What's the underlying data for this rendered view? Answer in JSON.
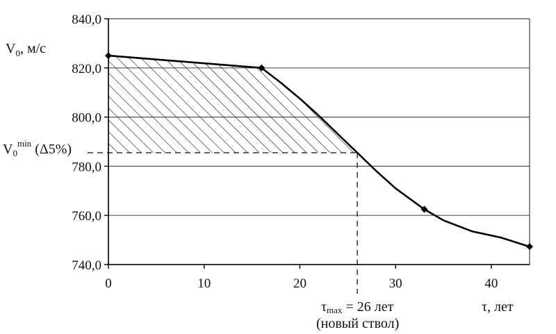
{
  "chart_data": {
    "type": "line",
    "ylabel": "V",
    "ylabel_sub": "0",
    "ylabel_unit": ", м/с",
    "xlabel": "τ, лет",
    "y_ticks": [
      "840,0",
      "820,0",
      "800,0",
      "780,0",
      "760,0",
      "740,0"
    ],
    "x_ticks": [
      "0",
      "10",
      "20",
      "30",
      "40"
    ],
    "xlim": [
      0,
      44
    ],
    "ylim": [
      740,
      840
    ],
    "grid": "horizontal",
    "series": [
      {
        "x": [
          0,
          16,
          18,
          20,
          22,
          24,
          26,
          28,
          30,
          33,
          35,
          38,
          41,
          44
        ],
        "y": [
          825,
          820,
          814,
          807.5,
          800.5,
          793,
          785.5,
          778,
          771,
          762.5,
          758,
          753.5,
          751,
          747.3
        ],
        "markers_x": [
          0,
          16,
          33,
          44
        ],
        "markers_y": [
          825,
          820,
          762.5,
          747.3
        ]
      }
    ],
    "threshold": {
      "y": 785.5,
      "label_main": "V",
      "label_sub": "0",
      "label_sup": "min",
      "label_suffix": " (Δ5%)"
    },
    "tau_max": {
      "x": 26,
      "label_main": "τ",
      "label_sub": "max",
      "label_suffix": " = 26 лет",
      "label_line2": "(новый ствол)"
    }
  }
}
